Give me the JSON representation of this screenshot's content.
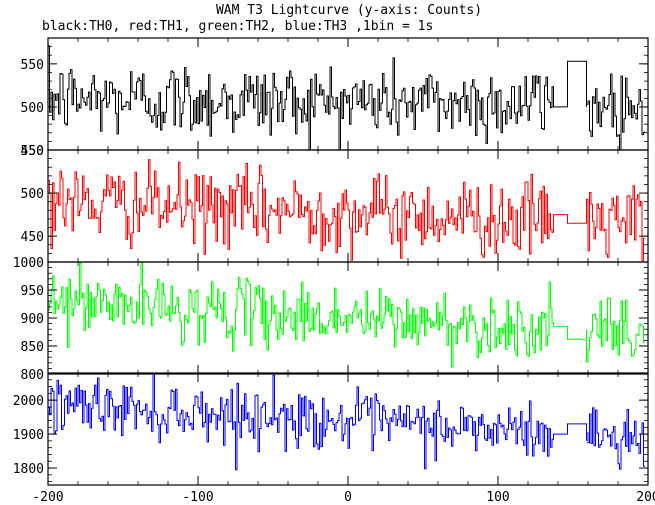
{
  "chart_data": {
    "type": "line",
    "title": "WAM T3 Lightcurve (y-axis: Counts)",
    "subtitle": "black:TH0, red:TH1, green:TH2, blue:TH3 ,1bin = 1s",
    "xlabel": "",
    "x_range": [
      -200,
      200
    ],
    "x_ticks": [
      -200,
      -100,
      0,
      100,
      200
    ],
    "x_gap": [
      137,
      159
    ],
    "seed": 12345,
    "panels": [
      {
        "series": "TH0",
        "color": "#000000",
        "ylim": [
          450,
          580
        ],
        "yticks": [
          450,
          500,
          550
        ],
        "mean_start": 510,
        "mean_end": 503,
        "noise": 22,
        "gap_level": 553,
        "gap_prev": 500,
        "gap_next": 500
      },
      {
        "series": "TH1",
        "color": "#ff0000",
        "ylim": [
          420,
          550
        ],
        "yticks": [
          450,
          500,
          550
        ],
        "mean_start": 490,
        "mean_end": 465,
        "noise": 22,
        "gap_level": 465,
        "gap_prev": 475,
        "gap_next": 475
      },
      {
        "series": "TH2",
        "color": "#00ff00",
        "ylim": [
          800,
          1000
        ],
        "yticks": [
          800,
          850,
          900,
          950,
          1000
        ],
        "mean_start": 930,
        "mean_end": 870,
        "noise": 28,
        "gap_level": 862,
        "gap_prev": 885,
        "gap_next": 880
      },
      {
        "series": "TH3",
        "color": "#0000ff",
        "ylim": [
          1750,
          2080
        ],
        "yticks": [
          1800,
          1900,
          2000
        ],
        "mean_start": 1990,
        "mean_end": 1885,
        "noise": 42,
        "gap_level": 1930,
        "gap_prev": 1900,
        "gap_next": 1880
      }
    ]
  }
}
